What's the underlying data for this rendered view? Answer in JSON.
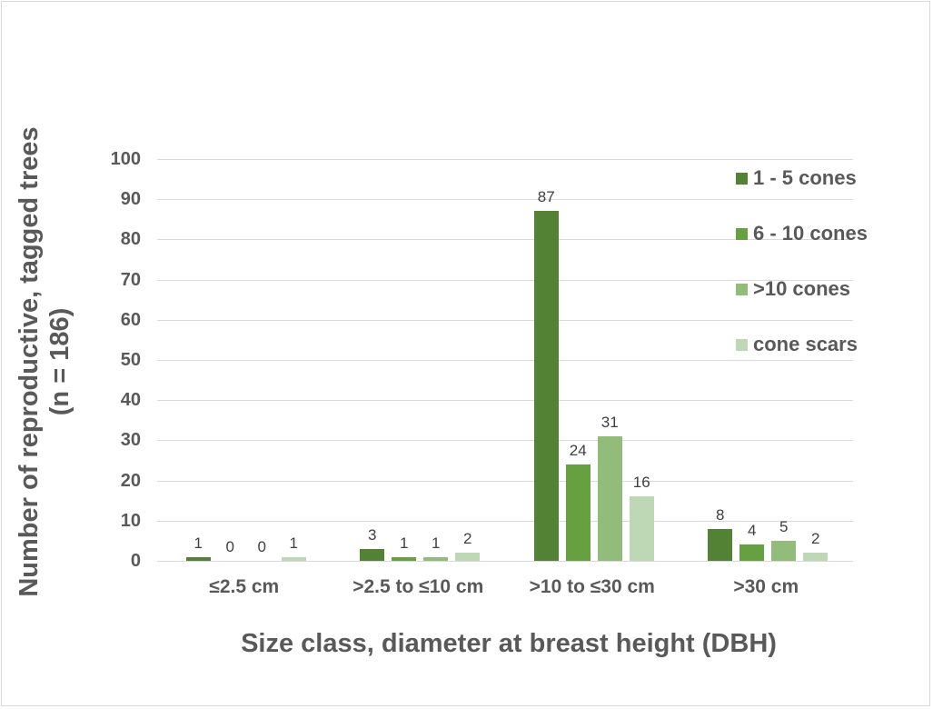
{
  "chart_data": {
    "type": "bar",
    "title": "",
    "xlabel": "Size class, diameter at breast height (DBH)",
    "ylabel": "Number of reproductive, tagged trees (n = 186)",
    "ylabel_line1": "Number of reproductive, tagged trees",
    "ylabel_line2": "(n = 186)",
    "categories": [
      "≤2.5 cm",
      ">2.5 to ≤10 cm",
      ">10 to ≤30 cm",
      ">30 cm"
    ],
    "series": [
      {
        "name": "1 - 5 cones",
        "color": "#548235",
        "values": [
          1,
          3,
          87,
          8
        ]
      },
      {
        "name": "6 - 10 cones",
        "color": "#67a041",
        "values": [
          0,
          1,
          24,
          4
        ]
      },
      {
        "name": ">10 cones",
        "color": "#92bc7a",
        "values": [
          0,
          1,
          31,
          5
        ]
      },
      {
        "name": "cone scars",
        "color": "#bed7b4",
        "values": [
          1,
          2,
          16,
          2
        ]
      }
    ],
    "ylim": [
      0,
      100
    ],
    "yticks": [
      0,
      10,
      20,
      30,
      40,
      50,
      60,
      70,
      80,
      90,
      100
    ],
    "grid": true,
    "legend_position": "right",
    "data_labels": true
  }
}
